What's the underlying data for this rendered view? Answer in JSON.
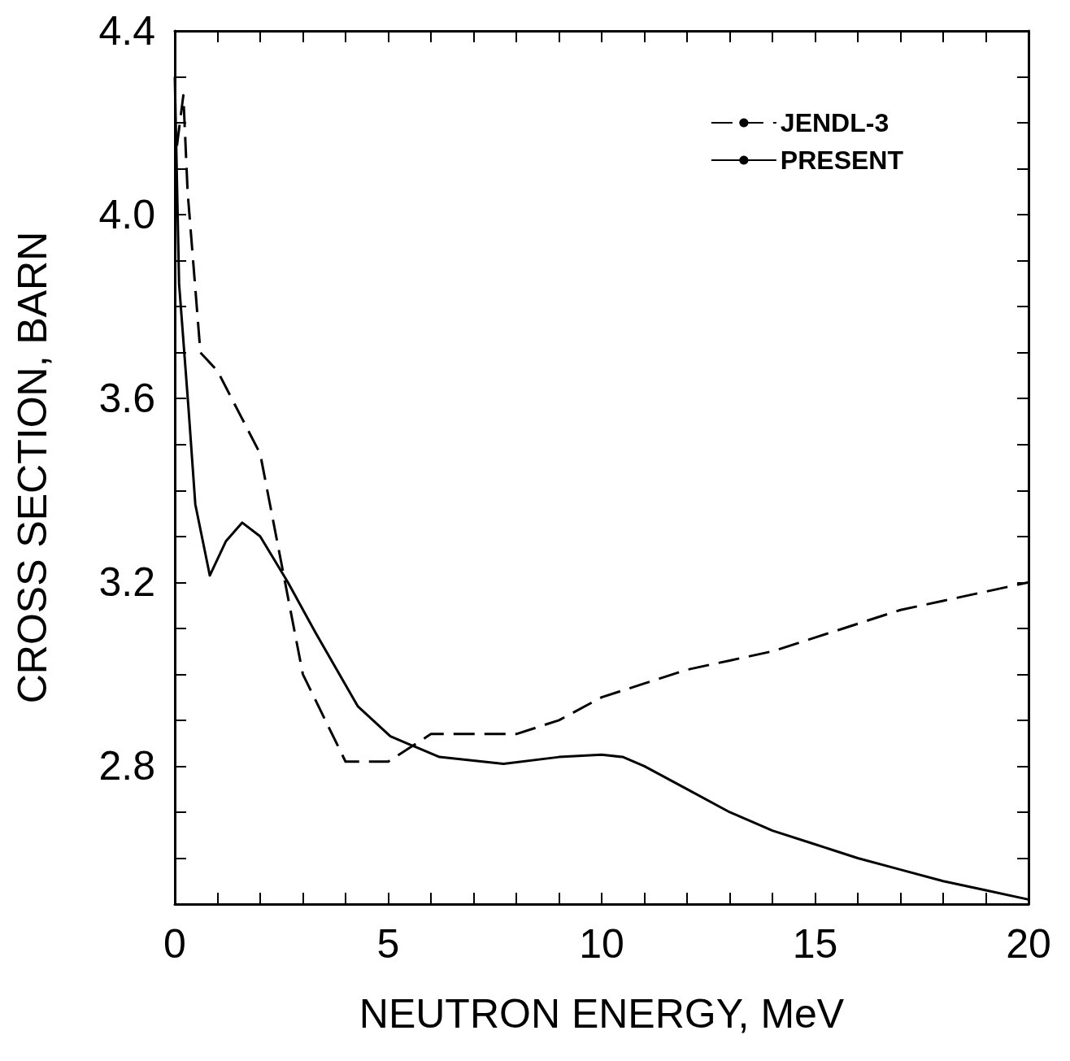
{
  "chart_data": {
    "type": "line",
    "xlabel": "NEUTRON ENERGY, MeV",
    "ylabel": "CROSS SECTION, BARN",
    "xlim": [
      0,
      20
    ],
    "ylim": [
      2.5,
      4.4
    ],
    "xticks": [
      0,
      {
        "value": 1,
        "label": null
      },
      {
        "value": 2,
        "label": null
      },
      {
        "value": 3,
        "label": null
      },
      {
        "value": 4,
        "label": null
      },
      5,
      {
        "value": 6,
        "label": null
      },
      {
        "value": 7,
        "label": null
      },
      {
        "value": 8,
        "label": null
      },
      {
        "value": 9,
        "label": null
      },
      10,
      {
        "value": 11,
        "label": null
      },
      {
        "value": 12,
        "label": null
      },
      {
        "value": 13,
        "label": null
      },
      {
        "value": 14,
        "label": null
      },
      15,
      {
        "value": 16,
        "label": null
      },
      {
        "value": 17,
        "label": null
      },
      {
        "value": 18,
        "label": null
      },
      {
        "value": 19,
        "label": null
      },
      20
    ],
    "yticks": [
      {
        "value": 2.5,
        "label": null
      },
      {
        "value": 2.6,
        "label": null
      },
      {
        "value": 2.7,
        "label": null
      },
      {
        "value": 2.8,
        "label": "2.8"
      },
      {
        "value": 2.9,
        "label": null
      },
      {
        "value": 3.0,
        "label": null
      },
      {
        "value": 3.1,
        "label": null
      },
      {
        "value": 3.2,
        "label": "3.2"
      },
      {
        "value": 3.3,
        "label": null
      },
      {
        "value": 3.4,
        "label": null
      },
      {
        "value": 3.5,
        "label": null
      },
      {
        "value": 3.6,
        "label": "3.6"
      },
      {
        "value": 3.7,
        "label": null
      },
      {
        "value": 3.8,
        "label": null
      },
      {
        "value": 3.9,
        "label": null
      },
      {
        "value": 4.0,
        "label": "4.0"
      },
      {
        "value": 4.1,
        "label": null
      },
      {
        "value": 4.2,
        "label": null
      },
      {
        "value": 4.3,
        "label": null
      },
      {
        "value": 4.4,
        "label": "4.4"
      }
    ],
    "grid": false,
    "legend": "top right",
    "marker": "none",
    "series": [
      {
        "name": "JENDL-3",
        "color": "#000000",
        "line_style": "dashed",
        "x": [
          0.05,
          0.2,
          0.3,
          0.6,
          1.0,
          2.0,
          3.0,
          4.0,
          5.0,
          6.0,
          8.0,
          9.0,
          10.0,
          11.0,
          12.0,
          13.0,
          14.0,
          15.0,
          16.0,
          17.0,
          18.0,
          19.0,
          20.0
        ],
        "values": [
          4.15,
          4.26,
          4.05,
          3.7,
          3.66,
          3.48,
          3.0,
          2.81,
          2.81,
          2.87,
          2.87,
          2.9,
          2.95,
          2.98,
          3.01,
          3.03,
          3.05,
          3.08,
          3.11,
          3.14,
          3.16,
          3.18,
          3.2
        ]
      },
      {
        "name": "PRESENT",
        "color": "#000000",
        "line_style": "solid",
        "x": [
          0.0,
          0.1,
          0.32,
          0.48,
          0.82,
          1.2,
          1.58,
          2.0,
          2.65,
          3.3,
          4.29,
          5.05,
          6.2,
          7.7,
          9.0,
          10.0,
          10.5,
          11.0,
          12.0,
          13.0,
          14.0,
          15.0,
          16.0,
          17.0,
          18.0,
          19.0,
          20.0
        ],
        "values": [
          4.3,
          3.85,
          3.58,
          3.37,
          3.215,
          3.29,
          3.33,
          3.3,
          3.2,
          3.09,
          2.93,
          2.865,
          2.82,
          2.805,
          2.82,
          2.825,
          2.82,
          2.8,
          2.75,
          2.7,
          2.66,
          2.63,
          2.6,
          2.575,
          2.55,
          2.53,
          2.51
        ]
      }
    ]
  }
}
